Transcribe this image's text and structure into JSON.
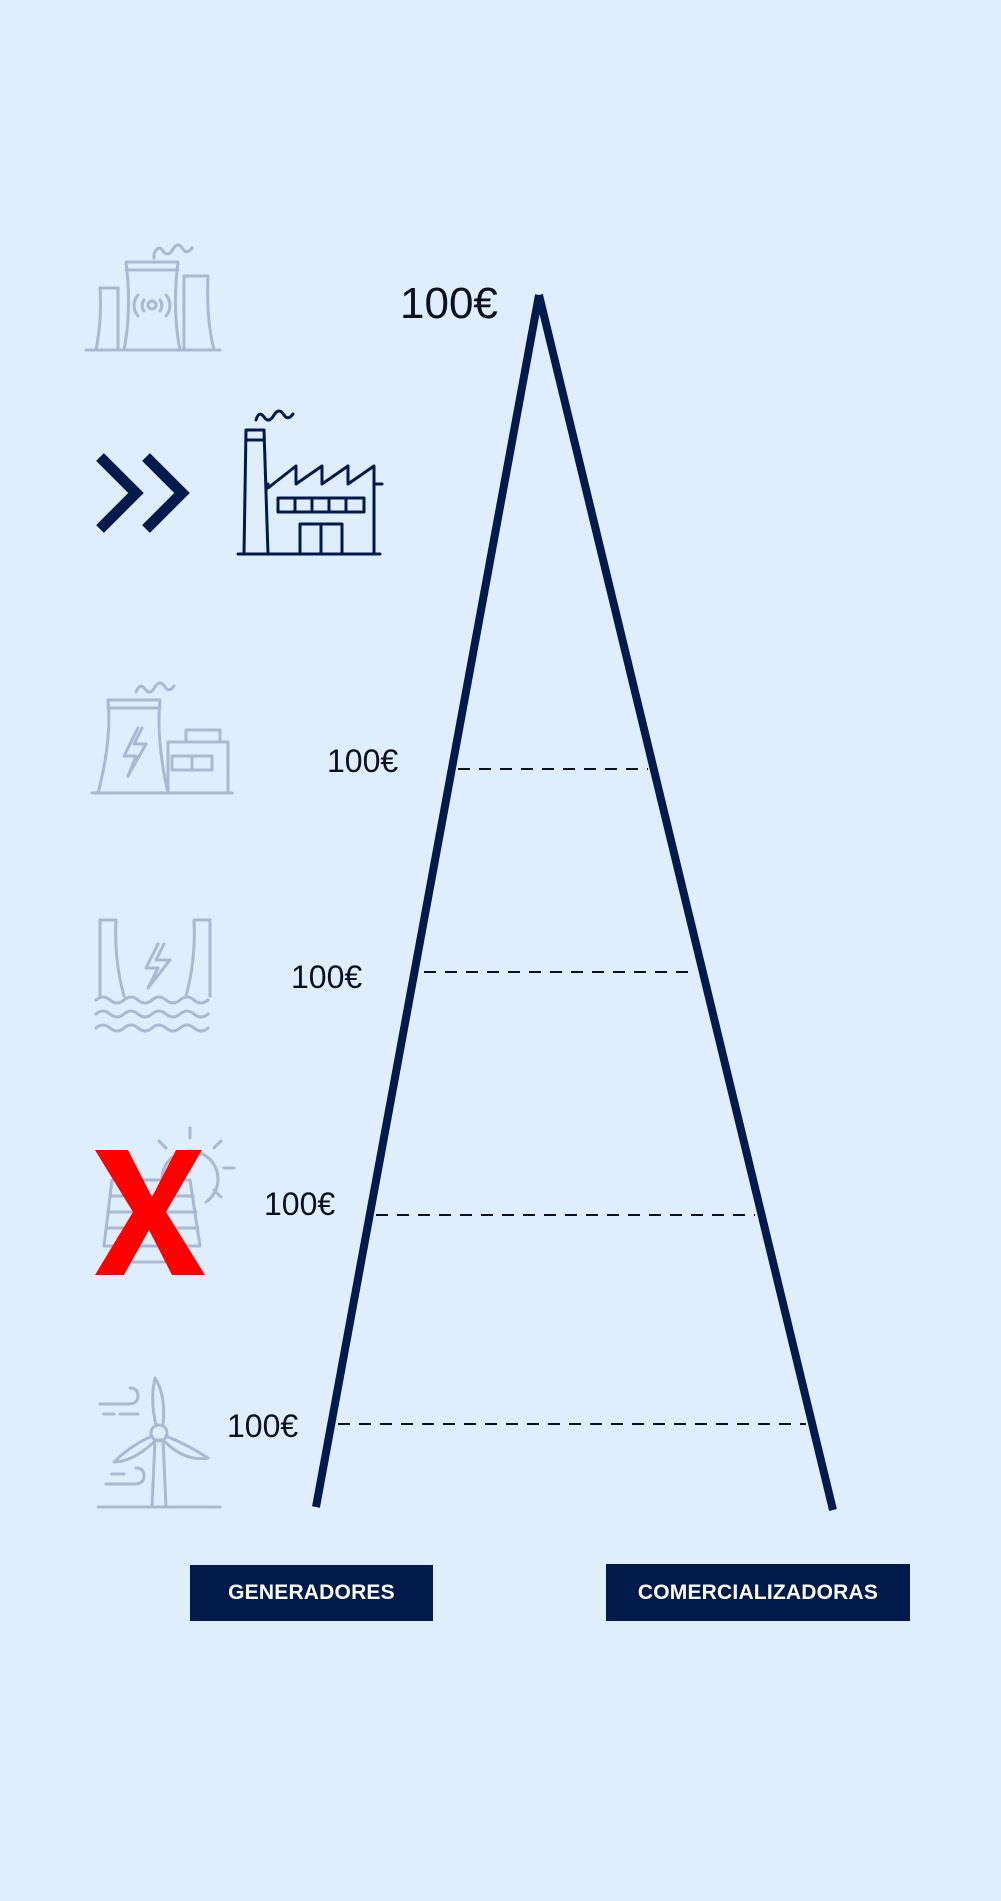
{
  "colors": {
    "background": "#dfeefd",
    "primary": "#001a4c",
    "icon_faded": "#aab9d2",
    "cross": "#ff0000"
  },
  "peak": {
    "price": "100€"
  },
  "levels": [
    {
      "price": "100€",
      "icon": "gas-plant-icon"
    },
    {
      "price": "100€",
      "icon": "hydro-dam-icon"
    },
    {
      "price": "100€",
      "icon": "solar-panel-icon"
    },
    {
      "price": "100€",
      "icon": "wind-turbine-icon"
    }
  ],
  "icons": {
    "top": "nuclear-plant-icon",
    "highlighted": "factory-icon",
    "indicator": "double-chevron-icon",
    "crossed": "red-x-icon"
  },
  "buttons": {
    "generators": "GENERADORES",
    "retailers": "COMERCIALIZADORAS"
  }
}
